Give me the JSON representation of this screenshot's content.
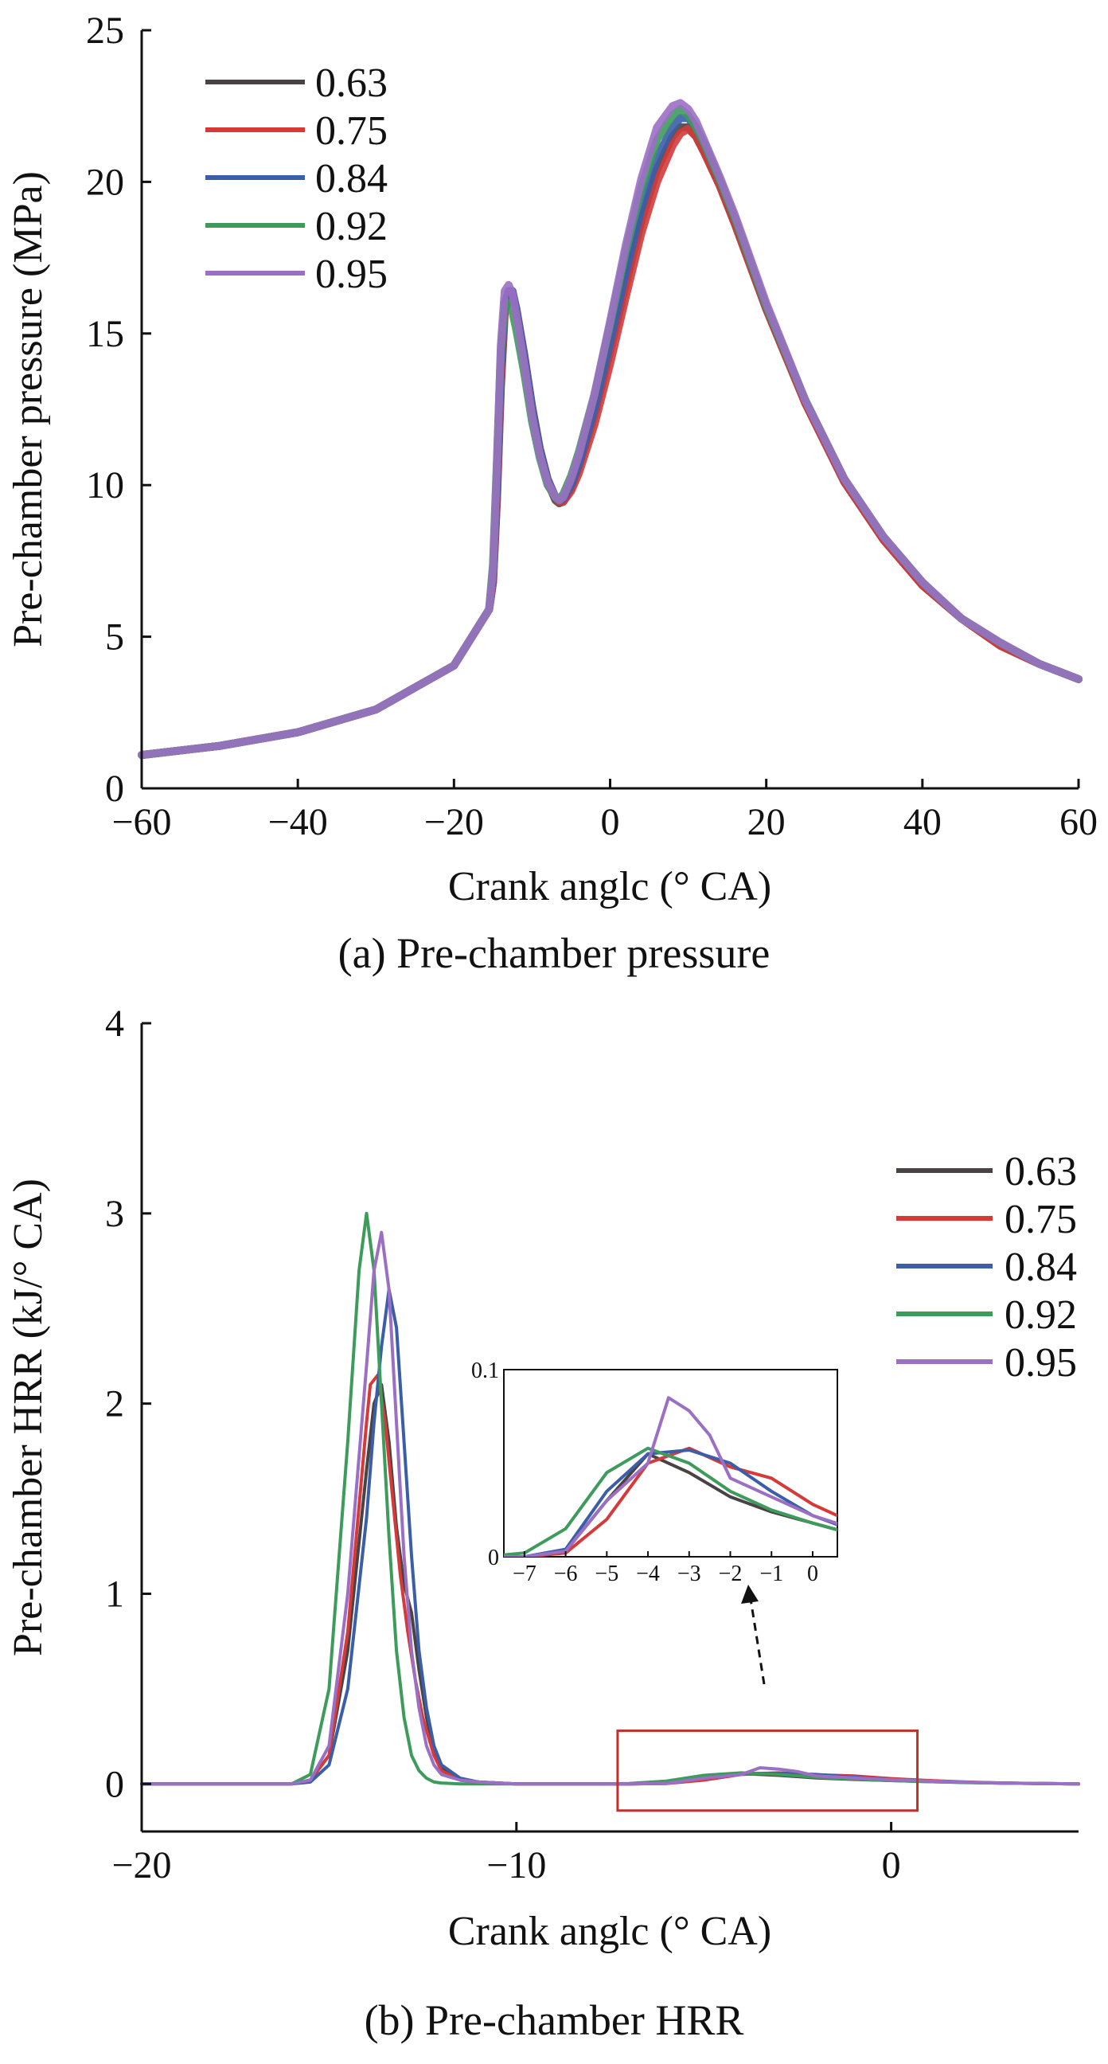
{
  "chart_data": [
    {
      "type": "line",
      "caption": "(a) Pre-chamber pressure",
      "xlabel": "Crank anglc (° CA)",
      "ylabel": "Pre-chamber pressure (MPa)",
      "xlim": [
        -60,
        60
      ],
      "ylim": [
        0,
        25
      ],
      "xticks": [
        -60,
        -40,
        -20,
        0,
        20,
        40,
        60
      ],
      "yticks": [
        0,
        5,
        10,
        15,
        20,
        25
      ],
      "xtick_labels": [
        "−60",
        "−40",
        "−20",
        "0",
        "20",
        "40",
        "60"
      ],
      "ytick_labels": [
        "0",
        "5",
        "10",
        "15",
        "20",
        "25"
      ],
      "legend_position": "top-left",
      "series": [
        {
          "name": "0.63",
          "color": "#4a4344",
          "x": [
            -60,
            -50,
            -40,
            -30,
            -20,
            -15.5,
            -15,
            -14.5,
            -14,
            -13.5,
            -13,
            -12.5,
            -12,
            -11,
            -10,
            -9,
            -8,
            -7,
            -6.5,
            -6,
            -5,
            -4,
            -2,
            0,
            2,
            4,
            6,
            8,
            9,
            10,
            11,
            12,
            14,
            16,
            20,
            25,
            30,
            35,
            40,
            45,
            50,
            55,
            60
          ],
          "y": [
            1.1,
            1.4,
            1.85,
            2.6,
            4.05,
            5.9,
            6.8,
            9.5,
            13.2,
            15.7,
            16.2,
            16.2,
            15.7,
            14.2,
            12.5,
            11.1,
            10.1,
            9.5,
            9.4,
            9.45,
            9.9,
            10.6,
            12.3,
            14.4,
            16.6,
            18.7,
            20.4,
            21.5,
            21.8,
            21.8,
            21.5,
            21.0,
            19.9,
            18.6,
            15.8,
            12.7,
            10.1,
            8.2,
            6.7,
            5.6,
            4.7,
            4.1,
            3.6
          ]
        },
        {
          "name": "0.75",
          "color": "#d43a3a",
          "x": [
            -60,
            -50,
            -40,
            -30,
            -20,
            -15.5,
            -15,
            -14.5,
            -14,
            -13.5,
            -13,
            -12.5,
            -12,
            -11,
            -10,
            -9,
            -8,
            -7,
            -6.5,
            -6,
            -5,
            -4,
            -2,
            0,
            2,
            4,
            6,
            8,
            9,
            10,
            11,
            12,
            14,
            16,
            20,
            25,
            30,
            35,
            40,
            45,
            50,
            55,
            60
          ],
          "y": [
            1.1,
            1.4,
            1.85,
            2.6,
            4.05,
            5.9,
            6.8,
            9.6,
            13.4,
            15.8,
            16.3,
            16.3,
            15.8,
            14.3,
            12.6,
            11.2,
            10.2,
            9.6,
            9.45,
            9.45,
            9.8,
            10.4,
            12.0,
            14.0,
            16.2,
            18.3,
            20.0,
            21.2,
            21.6,
            21.75,
            21.5,
            21.0,
            19.9,
            18.6,
            15.8,
            12.7,
            10.1,
            8.2,
            6.7,
            5.6,
            4.7,
            4.1,
            3.6
          ]
        },
        {
          "name": "0.84",
          "color": "#3a5ea8",
          "x": [
            -60,
            -50,
            -40,
            -30,
            -20,
            -15.5,
            -15,
            -14.5,
            -14,
            -13.5,
            -13,
            -12.5,
            -12,
            -11,
            -10,
            -9,
            -8,
            -7,
            -6.5,
            -6,
            -5,
            -4,
            -2,
            0,
            2,
            4,
            6,
            8,
            9,
            10,
            11,
            12,
            14,
            16,
            20,
            25,
            30,
            35,
            40,
            45,
            50,
            55,
            60
          ],
          "y": [
            1.1,
            1.4,
            1.85,
            2.6,
            4.05,
            5.9,
            7.0,
            10.0,
            13.8,
            16.0,
            16.4,
            16.4,
            15.8,
            14.3,
            12.6,
            11.2,
            10.2,
            9.6,
            9.5,
            9.55,
            10.0,
            10.7,
            12.5,
            14.7,
            17.0,
            19.1,
            20.8,
            21.8,
            22.1,
            22.1,
            21.8,
            21.3,
            20.1,
            18.8,
            15.9,
            12.8,
            10.2,
            8.3,
            6.8,
            5.6,
            4.8,
            4.1,
            3.6
          ]
        },
        {
          "name": "0.92",
          "color": "#3d9b5b",
          "x": [
            -60,
            -50,
            -40,
            -30,
            -20,
            -15.5,
            -15,
            -14.5,
            -14,
            -13.5,
            -13,
            -12.5,
            -12,
            -11,
            -10,
            -9,
            -8,
            -7,
            -6.5,
            -6,
            -5,
            -4,
            -2,
            0,
            2,
            4,
            6,
            8,
            9,
            10,
            11,
            12,
            14,
            16,
            20,
            25,
            30,
            35,
            40,
            45,
            50,
            55,
            60
          ],
          "y": [
            1.1,
            1.4,
            1.85,
            2.6,
            4.05,
            5.9,
            7.4,
            10.8,
            14.4,
            15.9,
            16.0,
            15.7,
            15.1,
            13.7,
            12.1,
            10.9,
            10.0,
            9.6,
            9.55,
            9.7,
            10.3,
            11.1,
            13.0,
            15.3,
            17.7,
            19.8,
            21.4,
            22.2,
            22.4,
            22.2,
            21.8,
            21.3,
            20.1,
            18.8,
            15.9,
            12.8,
            10.2,
            8.3,
            6.8,
            5.6,
            4.8,
            4.1,
            3.6
          ]
        },
        {
          "name": "0.95",
          "color": "#9b6fc4",
          "x": [
            -60,
            -50,
            -40,
            -30,
            -20,
            -15.5,
            -15,
            -14.5,
            -14,
            -13.5,
            -13,
            -12.5,
            -12,
            -11,
            -10,
            -9,
            -8,
            -7,
            -6.5,
            -6,
            -5,
            -4,
            -2,
            0,
            2,
            4,
            6,
            8,
            9,
            10,
            11,
            12,
            14,
            16,
            20,
            25,
            30,
            35,
            40,
            45,
            50,
            55,
            60
          ],
          "y": [
            1.1,
            1.4,
            1.85,
            2.6,
            4.05,
            5.9,
            7.2,
            10.6,
            14.6,
            16.4,
            16.6,
            16.3,
            15.6,
            14.0,
            12.3,
            11.0,
            10.1,
            9.6,
            9.5,
            9.6,
            10.2,
            11.0,
            13.0,
            15.4,
            17.9,
            20.1,
            21.8,
            22.5,
            22.6,
            22.4,
            22.0,
            21.4,
            20.2,
            18.9,
            16.0,
            12.8,
            10.2,
            8.3,
            6.8,
            5.6,
            4.8,
            4.1,
            3.6
          ]
        }
      ]
    },
    {
      "type": "line",
      "caption": "(b) Pre-chamber HRR",
      "xlabel": "Crank anglc (° CA)",
      "ylabel": "Pre-chamber HRR (kJ/° CA)",
      "xlim": [
        -20,
        5
      ],
      "ylim": [
        -0.25,
        4
      ],
      "xticks": [
        -20,
        -10,
        0
      ],
      "yticks": [
        0,
        1,
        2,
        3,
        4
      ],
      "xtick_labels": [
        "−20",
        "−10",
        "0"
      ],
      "ytick_labels": [
        "0",
        "1",
        "2",
        "3",
        "4"
      ],
      "legend_position": "top-right",
      "zoom_box": {
        "x_range": [
          -7.3,
          0.7
        ],
        "y_range": [
          -0.14,
          0.28
        ]
      },
      "series": [
        {
          "name": "0.63",
          "color": "#4a4344",
          "x": [
            -20,
            -16,
            -15.5,
            -15,
            -14.5,
            -14,
            -13.8,
            -13.6,
            -13.4,
            -13.2,
            -13,
            -12.8,
            -12.6,
            -12.4,
            -12.2,
            -12,
            -11.5,
            -11,
            -10,
            -8,
            -7,
            -6,
            -5,
            -4,
            -3,
            -2,
            -1,
            0,
            1,
            2,
            3,
            5
          ],
          "y": [
            0,
            0,
            0.02,
            0.15,
            0.7,
            1.65,
            2.0,
            2.1,
            1.8,
            1.35,
            1.05,
            0.9,
            0.6,
            0.35,
            0.18,
            0.08,
            0.02,
            0.01,
            0,
            0,
            0,
            0.003,
            0.03,
            0.055,
            0.045,
            0.032,
            0.024,
            0.018,
            0.012,
            0.008,
            0.004,
            0
          ]
        },
        {
          "name": "0.75",
          "color": "#d43a3a",
          "x": [
            -20,
            -16,
            -15.5,
            -15,
            -14.5,
            -14,
            -13.9,
            -13.7,
            -13.5,
            -13.3,
            -13.1,
            -12.9,
            -12.7,
            -12.5,
            -12.2,
            -12,
            -11.5,
            -11,
            -10,
            -8,
            -7,
            -6,
            -5,
            -4,
            -3,
            -2,
            -1,
            0,
            1,
            2,
            3,
            5
          ],
          "y": [
            0,
            0,
            0.02,
            0.15,
            0.8,
            1.9,
            2.1,
            2.15,
            1.9,
            1.5,
            1.1,
            0.8,
            0.55,
            0.35,
            0.15,
            0.07,
            0.02,
            0.01,
            0,
            0,
            0,
            0.002,
            0.02,
            0.05,
            0.058,
            0.048,
            0.042,
            0.028,
            0.018,
            0.01,
            0.005,
            0
          ]
        },
        {
          "name": "0.84",
          "color": "#3a5ea8",
          "x": [
            -20,
            -16,
            -15.5,
            -15,
            -14.5,
            -14,
            -13.8,
            -13.6,
            -13.4,
            -13.2,
            -13,
            -12.8,
            -12.6,
            -12.4,
            -12.2,
            -12,
            -11.5,
            -11,
            -10,
            -8,
            -7,
            -6,
            -5,
            -4,
            -3,
            -2,
            -1,
            0,
            1,
            2,
            3,
            5
          ],
          "y": [
            0,
            0,
            0.01,
            0.1,
            0.5,
            1.4,
            1.9,
            2.3,
            2.6,
            2.4,
            1.8,
            1.2,
            0.7,
            0.4,
            0.2,
            0.1,
            0.03,
            0.01,
            0,
            0,
            0,
            0.004,
            0.035,
            0.055,
            0.057,
            0.05,
            0.035,
            0.022,
            0.014,
            0.008,
            0.004,
            0
          ]
        },
        {
          "name": "0.92",
          "color": "#3d9b5b",
          "x": [
            -20,
            -16,
            -15.5,
            -15,
            -14.5,
            -14.2,
            -14,
            -13.8,
            -13.6,
            -13.4,
            -13.2,
            -13,
            -12.8,
            -12.6,
            -12.4,
            -12.2,
            -12,
            -11.5,
            -11,
            -10,
            -8,
            -7,
            -6,
            -5,
            -4,
            -3,
            -2,
            -1,
            0,
            1,
            2,
            3,
            5
          ],
          "y": [
            0,
            0,
            0.05,
            0.5,
            1.8,
            2.7,
            3.0,
            2.7,
            2.0,
            1.3,
            0.7,
            0.35,
            0.15,
            0.07,
            0.03,
            0.01,
            0.005,
            0,
            0,
            0,
            0,
            0.002,
            0.015,
            0.045,
            0.058,
            0.05,
            0.035,
            0.025,
            0.018,
            0.012,
            0.007,
            0.004,
            0
          ]
        },
        {
          "name": "0.95",
          "color": "#9b6fc4",
          "x": [
            -20,
            -16,
            -15.5,
            -15,
            -14.5,
            -14,
            -13.8,
            -13.6,
            -13.4,
            -13.2,
            -13,
            -12.8,
            -12.6,
            -12.4,
            -12.2,
            -12,
            -11.5,
            -11,
            -10,
            -8,
            -7,
            -6,
            -5,
            -4,
            -3.5,
            -3,
            -2.5,
            -2,
            -1,
            0,
            1,
            2,
            3,
            5
          ],
          "y": [
            0,
            0,
            0.02,
            0.2,
            1.0,
            2.2,
            2.7,
            2.9,
            2.6,
            1.9,
            1.2,
            0.7,
            0.4,
            0.2,
            0.1,
            0.05,
            0.02,
            0.01,
            0,
            0,
            0,
            0.003,
            0.03,
            0.05,
            0.085,
            0.078,
            0.065,
            0.042,
            0.032,
            0.022,
            0.015,
            0.009,
            0.004,
            0
          ]
        }
      ],
      "inset": {
        "xlim": [
          -7.5,
          0.6
        ],
        "ylim": [
          0,
          0.1
        ],
        "xticks": [
          -7,
          -6,
          -5,
          -4,
          -3,
          -2,
          -1,
          0
        ],
        "yticks": [
          0,
          0.1
        ],
        "xtick_labels": [
          "−7",
          "−6",
          "−5",
          "−4",
          "−3",
          "−2",
          "−1",
          "0"
        ],
        "ytick_labels": [
          "0",
          "0.1"
        ]
      }
    }
  ]
}
